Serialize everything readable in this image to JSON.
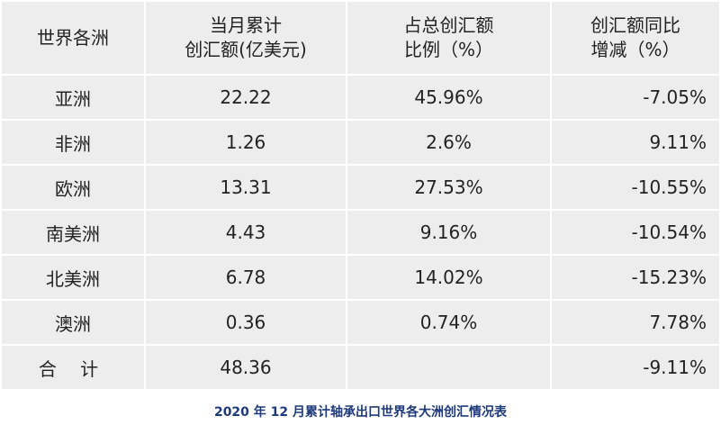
{
  "table": {
    "headers": [
      [
        "世界各洲"
      ],
      [
        "当月累计",
        "创汇额(亿美元)"
      ],
      [
        "占总创汇额",
        "比例（%）"
      ],
      [
        "创汇额同比",
        "增减（%）"
      ]
    ],
    "rows": [
      [
        "亚洲",
        "22.22",
        "45.96%",
        "-7.05%"
      ],
      [
        "非洲",
        "1.26",
        "2.6%",
        "9.11%"
      ],
      [
        "欧洲",
        "13.31",
        "27.53%",
        "-10.55%"
      ],
      [
        "南美洲",
        "4.43",
        "9.16%",
        "-10.54%"
      ],
      [
        "北美洲",
        "6.78",
        "14.02%",
        "-15.23%"
      ],
      [
        "澳洲",
        "0.36",
        "0.74%",
        "7.78%"
      ],
      [
        "合 计",
        "48.36",
        "",
        "-9.11%"
      ]
    ]
  },
  "caption": "2020 年 12 月累计轴承出口世界各大洲创汇情况表"
}
